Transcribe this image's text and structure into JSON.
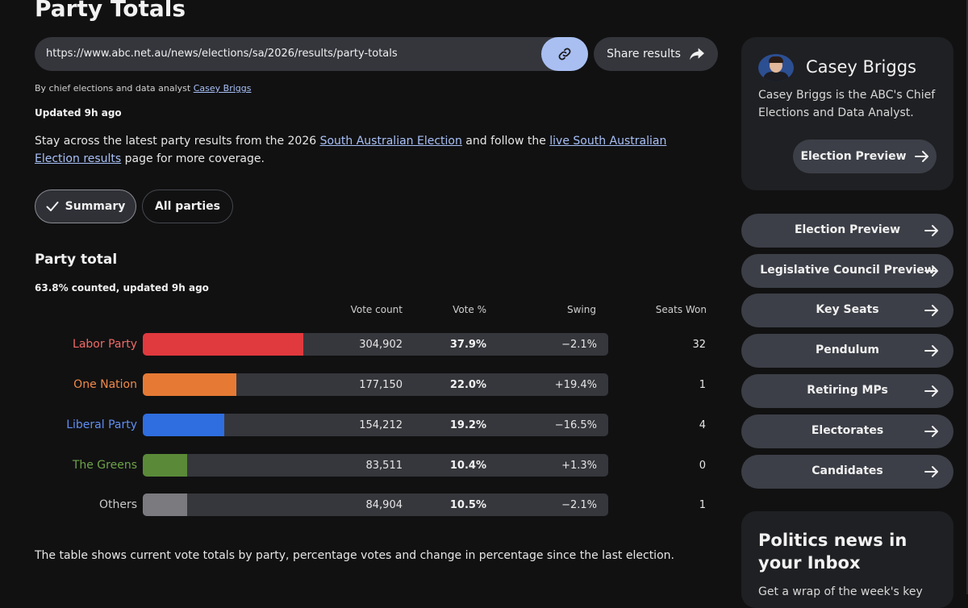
{
  "page": {
    "title": "Party Totals",
    "url": "https://www.abc.net.au/news/elections/sa/2026/results/party-totals",
    "share_label": "Share results",
    "byline_prefix": "By chief elections and data analyst",
    "byline_author": "Casey Briggs",
    "updated": "Updated 9h ago",
    "intro": {
      "t1": "Stay across the latest party results from the 2026 ",
      "l1": "South Australian Election",
      "t2": " and follow the ",
      "l2": "live South Australian Election results",
      "t3": " page for more coverage."
    },
    "tabs": [
      {
        "label": "Summary"
      },
      {
        "label": "All parties"
      }
    ]
  },
  "results": {
    "section_title": "Party total",
    "counted": "63.8% counted, updated 9h ago",
    "columns": [
      "Vote count",
      "Vote %",
      "Swing",
      "Seats Won"
    ],
    "rows": [
      {
        "party": "Labor Party",
        "votes": "304,902",
        "pct": "37.9%",
        "swing": "−2.1%",
        "seats": "32",
        "fill_pct": 37.9,
        "color": "#e0393e",
        "label_color": "#f06a66"
      },
      {
        "party": "One Nation",
        "votes": "177,150",
        "pct": "22.0%",
        "swing": "+19.4%",
        "seats": "1",
        "fill_pct": 22.0,
        "color": "#e67a35",
        "label_color": "#f08a48"
      },
      {
        "party": "Liberal Party",
        "votes": "154,212",
        "pct": "19.2%",
        "swing": "−16.5%",
        "seats": "4",
        "fill_pct": 19.2,
        "color": "#2f6ee0",
        "label_color": "#5f8ff2"
      },
      {
        "party": "The Greens",
        "votes": "83,511",
        "pct": "10.4%",
        "swing": "+1.3%",
        "seats": "0",
        "fill_pct": 10.4,
        "color": "#5a8a38",
        "label_color": "#6ea34a"
      },
      {
        "party": "Others",
        "votes": "84,904",
        "pct": "10.5%",
        "swing": "−2.1%",
        "seats": "1",
        "fill_pct": 10.5,
        "color": "#7b7b7f",
        "label_color": "#c9c9c9"
      }
    ],
    "footnote": "The table shows current vote totals by party, percentage votes and change in percentage since the last election."
  },
  "sidebar": {
    "author_name": "Casey Briggs",
    "author_bio": "Casey Briggs is the ABC's Chief Elections and Data Analyst.",
    "author_button": "Election Preview",
    "nav": [
      {
        "label": "Election Preview"
      },
      {
        "label": "Legislative Council Preview"
      },
      {
        "label": "Key Seats"
      },
      {
        "label": "Pendulum"
      },
      {
        "label": "Retiring MPs"
      },
      {
        "label": "Electorates"
      },
      {
        "label": "Candidates"
      }
    ],
    "newsletter_title": "Politics news in your Inbox",
    "newsletter_sub": "Get a wrap of the week's key"
  }
}
